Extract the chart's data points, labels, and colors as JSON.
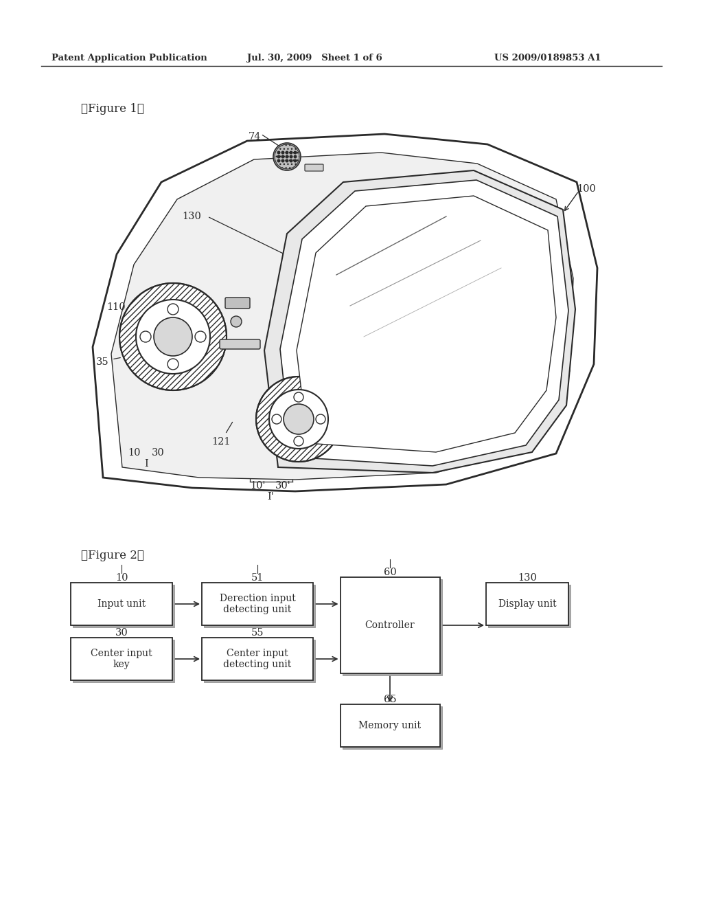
{
  "header_left": "Patent Application Publication",
  "header_mid": "Jul. 30, 2009   Sheet 1 of 6",
  "header_right": "US 2009/0189853 A1",
  "fig1_label": "【Figure 1】",
  "fig2_label": "【Figure 2】",
  "bg_color": "#ffffff",
  "line_color": "#2a2a2a",
  "box_labels": {
    "input_unit": "Input unit",
    "direction_detecting": "Derection input\ndetecting unit",
    "center_input_key": "Center input\nkey",
    "center_detecting": "Center input\ndetecting unit",
    "controller": "Controller",
    "display_unit": "Display unit",
    "memory_unit": "Memory unit"
  },
  "box_numbers": {
    "input_unit": "10",
    "direction_detecting": "51",
    "center_input_key": "30",
    "center_detecting": "55",
    "controller": "60",
    "display_unit": "130",
    "memory_unit": "65"
  }
}
